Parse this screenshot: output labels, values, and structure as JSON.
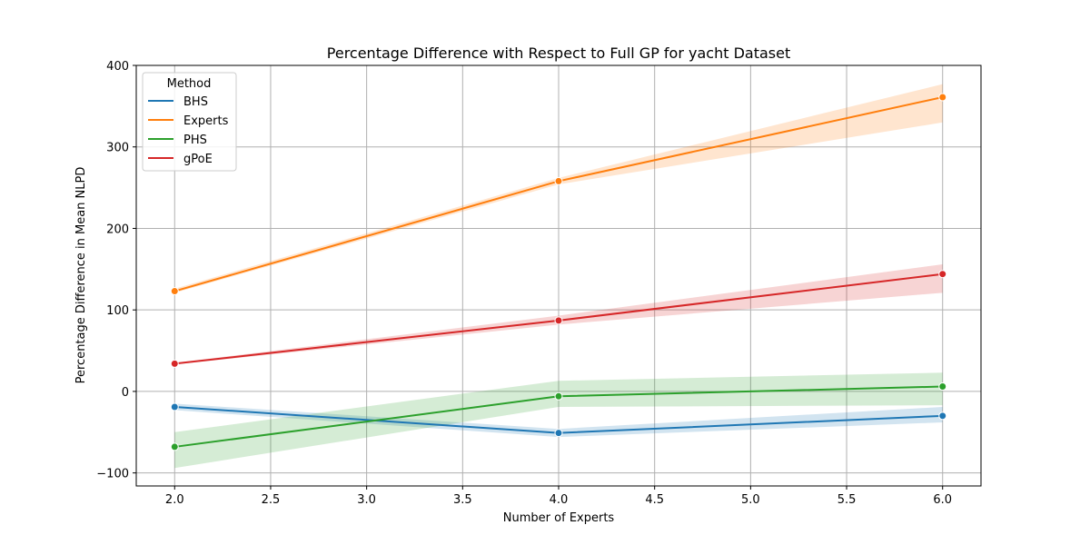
{
  "chart_data": {
    "type": "line",
    "title": "Percentage Difference with Respect to Full GP for yacht Dataset",
    "xlabel": "Number of Experts",
    "ylabel": "Percentage Difference in Mean NLPD",
    "xlim": [
      1.8,
      6.2
    ],
    "ylim": [
      -116,
      400
    ],
    "xticks": [
      2.0,
      2.5,
      3.0,
      3.5,
      4.0,
      4.5,
      5.0,
      5.5,
      6.0
    ],
    "xtick_labels": [
      "2.0",
      "2.5",
      "3.0",
      "3.5",
      "4.0",
      "4.5",
      "5.0",
      "5.5",
      "6.0"
    ],
    "yticks": [
      -100,
      0,
      100,
      200,
      300,
      400
    ],
    "ytick_labels": [
      "−100",
      "0",
      "100",
      "200",
      "300",
      "400"
    ],
    "grid": true,
    "legend": {
      "title": "Method",
      "location": "upper-left"
    },
    "x": [
      2,
      4,
      6
    ],
    "series": [
      {
        "name": "BHS",
        "color": "#1f77b4",
        "values": [
          -19,
          -51,
          -30
        ],
        "ci_low": [
          -23,
          -56,
          -38
        ],
        "ci_high": [
          -15,
          -46,
          -19
        ]
      },
      {
        "name": "Experts",
        "color": "#ff7f0e",
        "values": [
          123,
          258,
          361
        ],
        "ci_low": [
          121,
          254,
          330
        ],
        "ci_high": [
          126,
          262,
          377
        ]
      },
      {
        "name": "PHS",
        "color": "#2ca02c",
        "values": [
          -68,
          -6,
          6
        ],
        "ci_low": [
          -94,
          -19,
          -17
        ],
        "ci_high": [
          -50,
          13,
          23
        ]
      },
      {
        "name": "gPoE",
        "color": "#d62728",
        "values": [
          34,
          87,
          144
        ],
        "ci_low": [
          33,
          82,
          121
        ],
        "ci_high": [
          35,
          93,
          156
        ]
      }
    ]
  }
}
